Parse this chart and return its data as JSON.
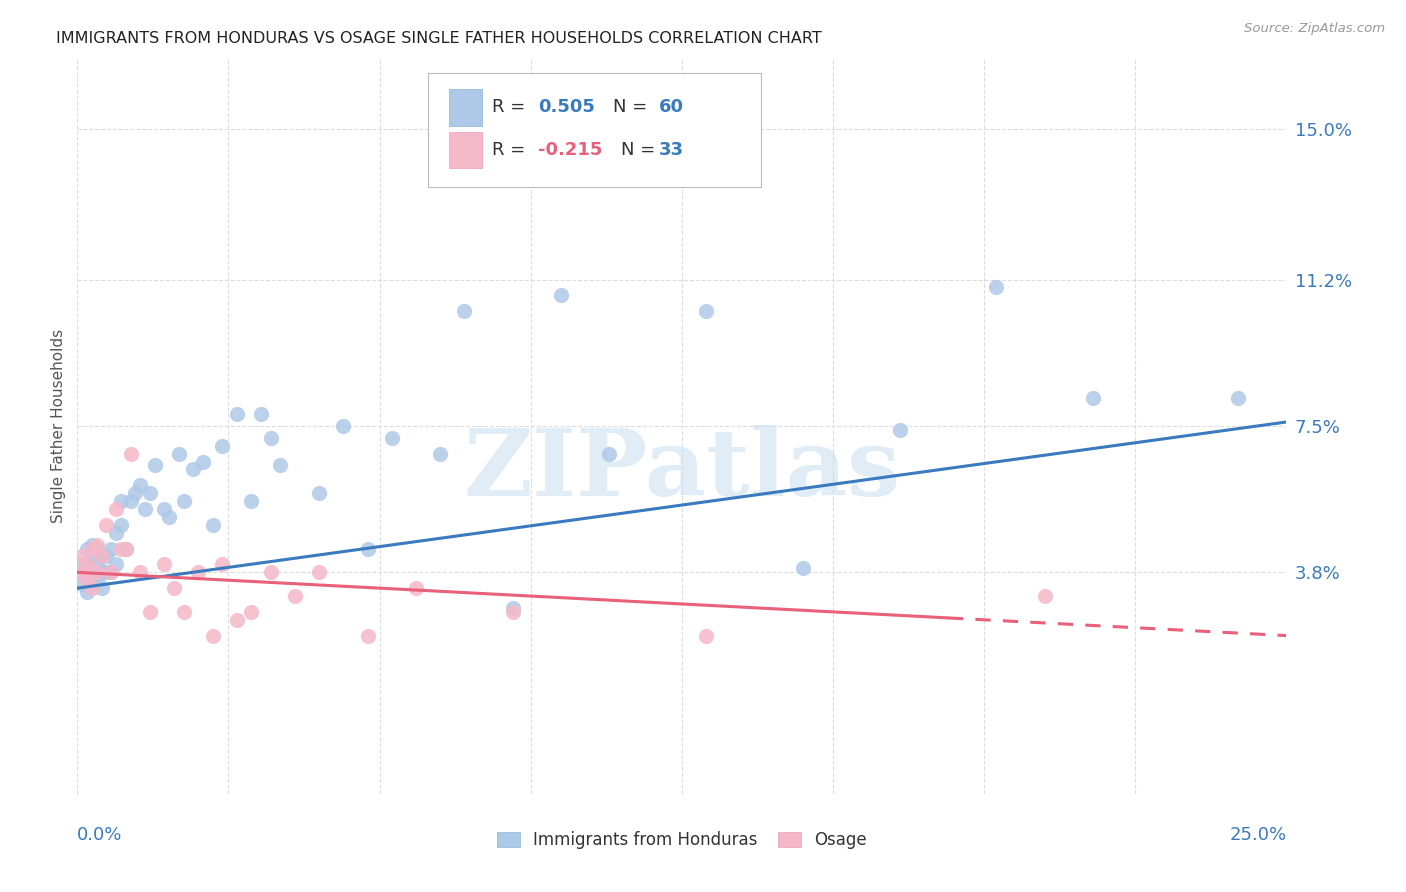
{
  "title": "IMMIGRANTS FROM HONDURAS VS OSAGE SINGLE FATHER HOUSEHOLDS CORRELATION CHART",
  "source": "Source: ZipAtlas.com",
  "ylabel": "Single Father Households",
  "ytick_labels": [
    "15.0%",
    "11.2%",
    "7.5%",
    "3.8%"
  ],
  "ytick_values": [
    0.15,
    0.112,
    0.075,
    0.038
  ],
  "xlim": [
    0.0,
    0.25
  ],
  "ylim": [
    -0.018,
    0.168
  ],
  "blue_color": "#aec8e8",
  "pink_color": "#f5b8c8",
  "blue_line_color": "#3a7abf",
  "pink_line_color": "#e8607a",
  "text_color": "#3a7abf",
  "grid_color": "#dddddd",
  "watermark": "ZIPatlas",
  "blue_r": 0.505,
  "blue_n": 60,
  "pink_r": -0.215,
  "pink_n": 33,
  "blue_line_x0": 0.0,
  "blue_line_y0": 0.034,
  "blue_line_x1": 0.25,
  "blue_line_y1": 0.076,
  "pink_line_x0": 0.0,
  "pink_line_y0": 0.038,
  "pink_line_x1": 0.25,
  "pink_line_y1": 0.022,
  "blue_scatter_x": [
    0.001,
    0.001,
    0.001,
    0.002,
    0.002,
    0.002,
    0.002,
    0.003,
    0.003,
    0.003,
    0.003,
    0.004,
    0.004,
    0.004,
    0.005,
    0.005,
    0.005,
    0.006,
    0.006,
    0.007,
    0.007,
    0.008,
    0.008,
    0.009,
    0.009,
    0.01,
    0.011,
    0.012,
    0.013,
    0.014,
    0.015,
    0.016,
    0.018,
    0.019,
    0.021,
    0.022,
    0.024,
    0.026,
    0.028,
    0.03,
    0.033,
    0.036,
    0.038,
    0.04,
    0.042,
    0.05,
    0.055,
    0.06,
    0.065,
    0.075,
    0.08,
    0.09,
    0.1,
    0.11,
    0.13,
    0.15,
    0.17,
    0.19,
    0.21,
    0.24
  ],
  "blue_scatter_y": [
    0.035,
    0.038,
    0.04,
    0.033,
    0.036,
    0.04,
    0.044,
    0.035,
    0.038,
    0.042,
    0.045,
    0.036,
    0.04,
    0.044,
    0.034,
    0.038,
    0.042,
    0.038,
    0.042,
    0.038,
    0.044,
    0.04,
    0.048,
    0.05,
    0.056,
    0.044,
    0.056,
    0.058,
    0.06,
    0.054,
    0.058,
    0.065,
    0.054,
    0.052,
    0.068,
    0.056,
    0.064,
    0.066,
    0.05,
    0.07,
    0.078,
    0.056,
    0.078,
    0.072,
    0.065,
    0.058,
    0.075,
    0.044,
    0.072,
    0.068,
    0.104,
    0.029,
    0.108,
    0.068,
    0.104,
    0.039,
    0.074,
    0.11,
    0.082,
    0.082
  ],
  "pink_scatter_x": [
    0.001,
    0.001,
    0.002,
    0.002,
    0.003,
    0.003,
    0.004,
    0.004,
    0.005,
    0.006,
    0.007,
    0.008,
    0.009,
    0.01,
    0.011,
    0.013,
    0.015,
    0.018,
    0.02,
    0.022,
    0.025,
    0.028,
    0.03,
    0.033,
    0.036,
    0.04,
    0.045,
    0.05,
    0.06,
    0.07,
    0.09,
    0.13,
    0.2
  ],
  "pink_scatter_y": [
    0.038,
    0.042,
    0.036,
    0.04,
    0.034,
    0.044,
    0.038,
    0.045,
    0.042,
    0.05,
    0.038,
    0.054,
    0.044,
    0.044,
    0.068,
    0.038,
    0.028,
    0.04,
    0.034,
    0.028,
    0.038,
    0.022,
    0.04,
    0.026,
    0.028,
    0.038,
    0.032,
    0.038,
    0.022,
    0.034,
    0.028,
    0.022,
    0.032
  ]
}
